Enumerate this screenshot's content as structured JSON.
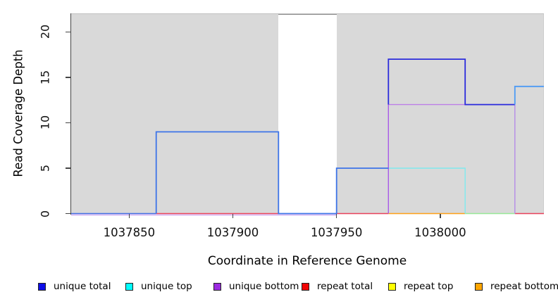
{
  "figure": {
    "y_title": "Read Coverage Depth",
    "x_title": "Coordinate in Reference Genome"
  },
  "legend": {
    "items": [
      {
        "label": "unique total",
        "color": "#0e0ee8"
      },
      {
        "label": "unique top",
        "color": "#00ffff"
      },
      {
        "label": "unique bottom",
        "color": "#9b2be0"
      },
      {
        "label": "repeat total",
        "color": "#f00505"
      },
      {
        "label": "repeat top",
        "color": "#ffff00"
      },
      {
        "label": "repeat bottom",
        "color": "#ffa500"
      }
    ]
  },
  "chart_data": {
    "type": "line",
    "subtype": "step-coverage",
    "title": "",
    "xlabel": "Coordinate in Reference Genome",
    "ylabel": "Read Coverage Depth",
    "xlim": [
      1037822,
      1038050
    ],
    "ylim": [
      0,
      22
    ],
    "x_ticks": [
      1037850,
      1037900,
      1037950,
      1038000
    ],
    "y_ticks": [
      0,
      5,
      10,
      15,
      20
    ],
    "grid": false,
    "legend_position": "bottom",
    "panel_background": "#d9d9d9",
    "gap_region": {
      "x0": 1037922,
      "x1": 1037950,
      "color": "#ffffff",
      "top_line_color": "#8a8a8a"
    },
    "series": [
      {
        "name": "unique total",
        "color": "#0e0ee8",
        "step_points": [
          [
            1037822,
            0
          ],
          [
            1037863,
            0
          ],
          [
            1037863,
            9
          ],
          [
            1037922,
            9
          ],
          [
            1037922,
            0
          ],
          [
            1037950,
            0
          ],
          [
            1037950,
            5
          ],
          [
            1037975,
            5
          ],
          [
            1037975,
            17
          ],
          [
            1038012,
            17
          ],
          [
            1038012,
            12
          ],
          [
            1038036,
            12
          ],
          [
            1038036,
            14
          ],
          [
            1038050,
            14
          ]
        ]
      },
      {
        "name": "unique top",
        "color": "#00ffff",
        "step_points": [
          [
            1037822,
            0
          ],
          [
            1037975,
            0
          ],
          [
            1037975,
            5
          ],
          [
            1038012,
            5
          ],
          [
            1038012,
            0
          ],
          [
            1038050,
            0
          ]
        ]
      },
      {
        "name": "unique bottom",
        "color": "#9b2be0",
        "step_points": [
          [
            1037822,
            0
          ],
          [
            1037975,
            0
          ],
          [
            1037975,
            12
          ],
          [
            1038036,
            12
          ],
          [
            1038036,
            0
          ],
          [
            1038050,
            0
          ]
        ]
      },
      {
        "name": "repeat total",
        "color": "#f00505",
        "step_points": [
          [
            1037822,
            0
          ],
          [
            1038050,
            0
          ]
        ]
      },
      {
        "name": "repeat top",
        "color": "#ffff00",
        "step_points": [
          [
            1037822,
            0
          ],
          [
            1038050,
            0
          ]
        ]
      },
      {
        "name": "repeat bottom",
        "color": "#ffa500",
        "step_points": [
          [
            1037822,
            0
          ],
          [
            1038050,
            0
          ]
        ]
      }
    ],
    "render_segments": [
      {
        "name": "unique-bottom-zero-underline",
        "color": "#c9a0ef",
        "w": 1.2,
        "dy": 2,
        "points": [
          [
            1037822,
            0
          ],
          [
            1037950,
            0
          ]
        ]
      },
      {
        "name": "unique-total-zero-left",
        "color": "#4169e1",
        "w": 1.6,
        "points": [
          [
            1037822,
            0
          ],
          [
            1037863,
            0
          ]
        ]
      },
      {
        "name": "repeat-total-zero-a",
        "color": "#e8415a",
        "w": 1.4,
        "points": [
          [
            1037863,
            0
          ],
          [
            1037922,
            0
          ]
        ]
      },
      {
        "name": "repeat-total-zero-b",
        "color": "#e8415a",
        "w": 1.4,
        "points": [
          [
            1037950,
            0
          ],
          [
            1037975,
            0
          ]
        ]
      },
      {
        "name": "repeat-total-zero-c",
        "color": "#e8415a",
        "w": 1.4,
        "points": [
          [
            1038036,
            0
          ],
          [
            1038050,
            0
          ]
        ]
      },
      {
        "name": "repeat-bottom-zero",
        "color": "#ffa017",
        "w": 1.6,
        "points": [
          [
            1037975,
            0
          ],
          [
            1038012,
            0
          ]
        ]
      },
      {
        "name": "repeat-top-over-unique-top-zero",
        "color": "#97e897",
        "w": 1.6,
        "points": [
          [
            1038012,
            0
          ],
          [
            1038036,
            0
          ]
        ]
      },
      {
        "name": "unique-top-five",
        "color": "#7fe9ee",
        "w": 1.4,
        "points": [
          [
            1037975,
            5
          ],
          [
            1038012,
            5
          ],
          [
            1038012,
            0
          ]
        ]
      },
      {
        "name": "unique-bottom-rise",
        "color": "#a85ae8",
        "w": 1.4,
        "points": [
          [
            1037975,
            0
          ],
          [
            1037975,
            12
          ]
        ]
      },
      {
        "name": "unique-bottom-twelve",
        "color": "#bd7fe8",
        "w": 1.4,
        "points": [
          [
            1037975,
            12
          ],
          [
            1038036,
            12
          ]
        ]
      },
      {
        "name": "unique-bottom-fall",
        "color": "#b58ae8",
        "w": 1.4,
        "points": [
          [
            1038036,
            12
          ],
          [
            1038036,
            0
          ]
        ]
      },
      {
        "name": "unique-total-nine-five",
        "color": "#3d74e8",
        "w": 1.8,
        "points": [
          [
            1037863,
            0
          ],
          [
            1037863,
            9
          ],
          [
            1037922,
            9
          ],
          [
            1037922,
            0
          ],
          [
            1037950,
            0
          ],
          [
            1037950,
            5
          ],
          [
            1037975,
            5
          ]
        ]
      },
      {
        "name": "unique-total-seventeen-twelve",
        "color": "#2b2bdc",
        "w": 1.8,
        "points": [
          [
            1037975,
            12
          ],
          [
            1037975,
            17
          ],
          [
            1038012,
            17
          ],
          [
            1038012,
            12
          ],
          [
            1038036,
            12
          ]
        ]
      },
      {
        "name": "unique-total-fourteen",
        "color": "#4d9bf5",
        "w": 1.8,
        "points": [
          [
            1038036,
            12
          ],
          [
            1038036,
            14
          ],
          [
            1038050,
            14
          ]
        ]
      }
    ]
  }
}
